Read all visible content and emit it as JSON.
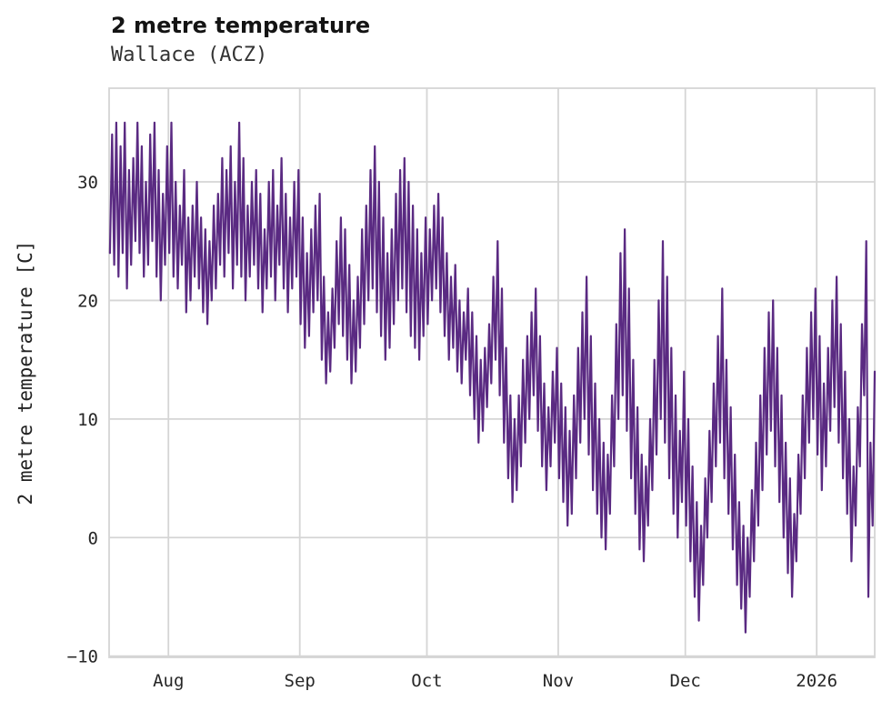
{
  "header": {
    "title": "2 metre temperature",
    "subtitle": "Wallace (ACZ)"
  },
  "chart_data": {
    "type": "line",
    "title": "2 metre temperature",
    "subtitle": "Wallace (ACZ)",
    "xlabel": "",
    "ylabel": "2 metre temperature [C]",
    "series_name": "2 metre temperature",
    "line_color": "#5a2a82",
    "grid": true,
    "grid_color": "#d5d5d5",
    "legend": "none",
    "ylim": [
      -10.1,
      37.9
    ],
    "xlim_days": [
      0,
      180.7
    ],
    "y_ticks": [
      {
        "value": -10,
        "label": "−10"
      },
      {
        "value": 0,
        "label": "0"
      },
      {
        "value": 10,
        "label": "10"
      },
      {
        "value": 20,
        "label": "20"
      },
      {
        "value": 30,
        "label": "30"
      }
    ],
    "x_ticks": [
      {
        "label": "Aug",
        "day": 14
      },
      {
        "label": "Sep",
        "day": 45
      },
      {
        "label": "Oct",
        "day": 75
      },
      {
        "label": "Nov",
        "day": 106
      },
      {
        "label": "Dec",
        "day": 136
      },
      {
        "label": "2026",
        "day": 167
      }
    ],
    "points_per_day": 2,
    "daily_min_max": [
      [
        24,
        34
      ],
      [
        23,
        35
      ],
      [
        22,
        33
      ],
      [
        24,
        35
      ],
      [
        21,
        31
      ],
      [
        23,
        32
      ],
      [
        25,
        35
      ],
      [
        24,
        33
      ],
      [
        22,
        30
      ],
      [
        23,
        34
      ],
      [
        25,
        35
      ],
      [
        22,
        31
      ],
      [
        20,
        29
      ],
      [
        23,
        33
      ],
      [
        24,
        35
      ],
      [
        22,
        30
      ],
      [
        21,
        28
      ],
      [
        23,
        31
      ],
      [
        19,
        27
      ],
      [
        20,
        28
      ],
      [
        22,
        30
      ],
      [
        21,
        27
      ],
      [
        19,
        26
      ],
      [
        18,
        25
      ],
      [
        20,
        28
      ],
      [
        21,
        29
      ],
      [
        23,
        32
      ],
      [
        22,
        31
      ],
      [
        24,
        33
      ],
      [
        21,
        30
      ],
      [
        23,
        35
      ],
      [
        22,
        32
      ],
      [
        20,
        28
      ],
      [
        22,
        30
      ],
      [
        23,
        31
      ],
      [
        21,
        29
      ],
      [
        19,
        26
      ],
      [
        21,
        30
      ],
      [
        22,
        31
      ],
      [
        20,
        28
      ],
      [
        23,
        32
      ],
      [
        21,
        29
      ],
      [
        19,
        27
      ],
      [
        21,
        30
      ],
      [
        22,
        31
      ],
      [
        18,
        27
      ],
      [
        16,
        24
      ],
      [
        17,
        26
      ],
      [
        19,
        28
      ],
      [
        20,
        29
      ],
      [
        15,
        22
      ],
      [
        13,
        19
      ],
      [
        14,
        21
      ],
      [
        16,
        25
      ],
      [
        18,
        27
      ],
      [
        17,
        26
      ],
      [
        15,
        23
      ],
      [
        13,
        20
      ],
      [
        14,
        22
      ],
      [
        16,
        26
      ],
      [
        18,
        28
      ],
      [
        20,
        31
      ],
      [
        21,
        33
      ],
      [
        19,
        30
      ],
      [
        17,
        27
      ],
      [
        15,
        24
      ],
      [
        16,
        26
      ],
      [
        18,
        29
      ],
      [
        20,
        31
      ],
      [
        21,
        32
      ],
      [
        19,
        30
      ],
      [
        17,
        28
      ],
      [
        16,
        26
      ],
      [
        15,
        24
      ],
      [
        17,
        27
      ],
      [
        18,
        26
      ],
      [
        20,
        28
      ],
      [
        21,
        29
      ],
      [
        19,
        27
      ],
      [
        17,
        24
      ],
      [
        15,
        22
      ],
      [
        16,
        23
      ],
      [
        14,
        20
      ],
      [
        13,
        19
      ],
      [
        15,
        21
      ],
      [
        12,
        19
      ],
      [
        10,
        17
      ],
      [
        8,
        15
      ],
      [
        9,
        16
      ],
      [
        11,
        18
      ],
      [
        13,
        22
      ],
      [
        15,
        25
      ],
      [
        12,
        21
      ],
      [
        8,
        16
      ],
      [
        5,
        12
      ],
      [
        3,
        10
      ],
      [
        4,
        12
      ],
      [
        6,
        15
      ],
      [
        8,
        17
      ],
      [
        10,
        19
      ],
      [
        12,
        21
      ],
      [
        9,
        17
      ],
      [
        6,
        13
      ],
      [
        4,
        11
      ],
      [
        6,
        14
      ],
      [
        8,
        16
      ],
      [
        5,
        13
      ],
      [
        3,
        11
      ],
      [
        1,
        9
      ],
      [
        2,
        12
      ],
      [
        5,
        16
      ],
      [
        8,
        19
      ],
      [
        10,
        22
      ],
      [
        7,
        17
      ],
      [
        4,
        13
      ],
      [
        2,
        10
      ],
      [
        0,
        8
      ],
      [
        -1,
        7
      ],
      [
        2,
        12
      ],
      [
        6,
        18
      ],
      [
        10,
        24
      ],
      [
        12,
        26
      ],
      [
        9,
        21
      ],
      [
        5,
        15
      ],
      [
        2,
        11
      ],
      [
        -1,
        7
      ],
      [
        -2,
        6
      ],
      [
        1,
        10
      ],
      [
        4,
        15
      ],
      [
        7,
        20
      ],
      [
        10,
        25
      ],
      [
        8,
        22
      ],
      [
        5,
        16
      ],
      [
        2,
        12
      ],
      [
        0,
        9
      ],
      [
        3,
        14
      ],
      [
        1,
        10
      ],
      [
        -2,
        6
      ],
      [
        -5,
        3
      ],
      [
        -7,
        1
      ],
      [
        -4,
        5
      ],
      [
        0,
        9
      ],
      [
        3,
        13
      ],
      [
        6,
        17
      ],
      [
        8,
        21
      ],
      [
        5,
        15
      ],
      [
        2,
        11
      ],
      [
        -1,
        7
      ],
      [
        -4,
        3
      ],
      [
        -6,
        1
      ],
      [
        -8,
        0
      ],
      [
        -5,
        4
      ],
      [
        -2,
        8
      ],
      [
        1,
        12
      ],
      [
        4,
        16
      ],
      [
        7,
        19
      ],
      [
        9,
        20
      ],
      [
        6,
        16
      ],
      [
        3,
        12
      ],
      [
        0,
        8
      ],
      [
        -3,
        5
      ],
      [
        -5,
        2
      ],
      [
        -2,
        7
      ],
      [
        2,
        12
      ],
      [
        5,
        16
      ],
      [
        8,
        19
      ],
      [
        10,
        21
      ],
      [
        7,
        17
      ],
      [
        4,
        13
      ],
      [
        6,
        16
      ],
      [
        9,
        20
      ],
      [
        11,
        22
      ],
      [
        8,
        18
      ],
      [
        5,
        14
      ],
      [
        2,
        10
      ],
      [
        -2,
        6
      ],
      [
        1,
        11
      ],
      [
        6,
        18
      ],
      [
        12,
        25
      ],
      [
        -5,
        8
      ],
      [
        1,
        14
      ]
    ]
  }
}
